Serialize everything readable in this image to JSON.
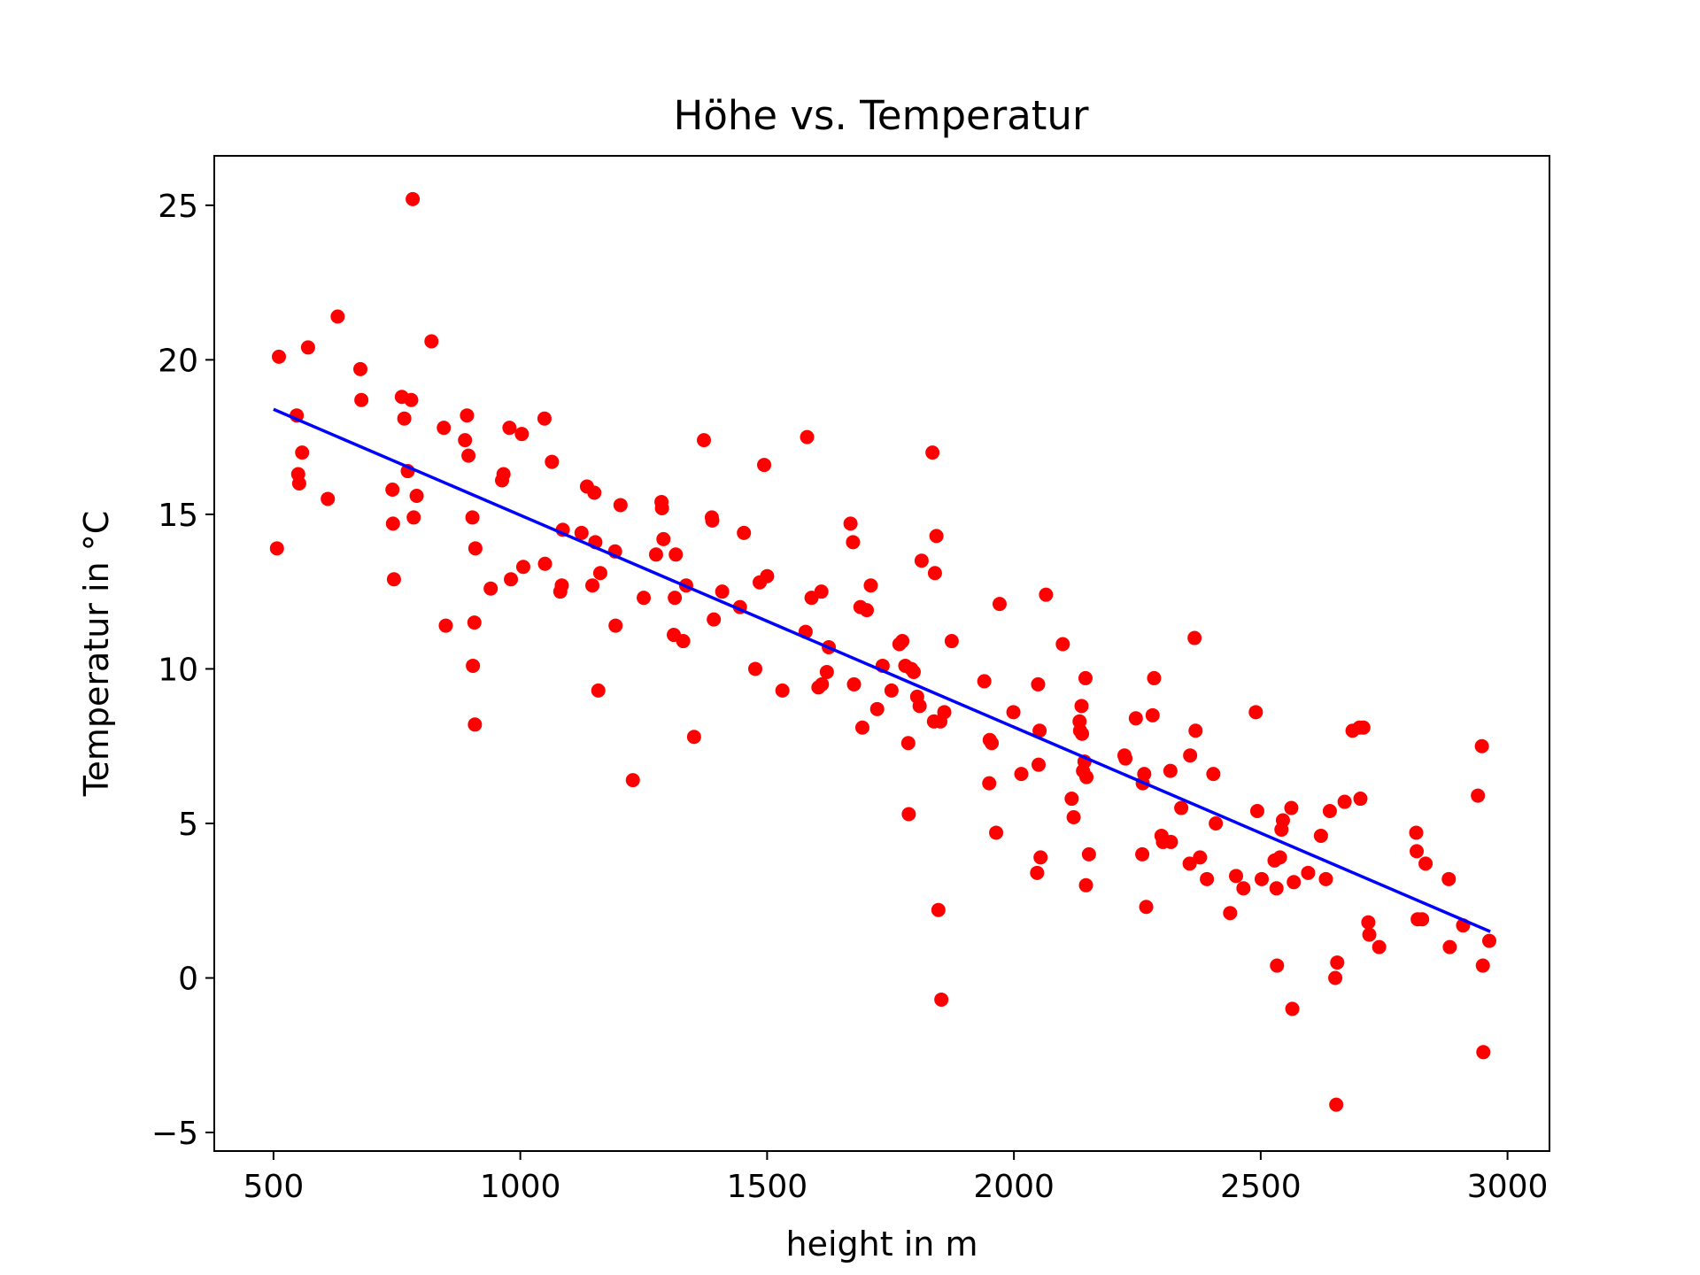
{
  "chart_data": {
    "type": "scatter",
    "title": "Höhe vs. Temperatur",
    "xlabel": "height in m",
    "ylabel": "Temperatur in °C",
    "xlim": [
      380,
      3085
    ],
    "ylim": [
      -5.6,
      26.6
    ],
    "xticks": [
      500,
      1000,
      1500,
      2000,
      2500,
      3000
    ],
    "yticks": [
      -5,
      0,
      5,
      10,
      15,
      20,
      25
    ],
    "xtick_labels": [
      "500",
      "1000",
      "1500",
      "2000",
      "2500",
      "3000"
    ],
    "ytick_labels": [
      "−5",
      "0",
      "5",
      "10",
      "15",
      "20",
      "25"
    ],
    "grid": false,
    "colors": {
      "points": "#ff0000",
      "fit_line": "#0000ff",
      "axes": "#000000"
    },
    "series": [
      {
        "kind": "scatter",
        "points": [
          [
            507,
            13.9
          ],
          [
            511,
            20.1
          ],
          [
            547,
            18.2
          ],
          [
            550,
            16.3
          ],
          [
            552,
            16.0
          ],
          [
            558,
            17.0
          ],
          [
            570,
            20.4
          ],
          [
            610,
            15.5
          ],
          [
            630,
            21.4
          ],
          [
            676,
            19.7
          ],
          [
            678,
            18.7
          ],
          [
            741,
            15.8
          ],
          [
            742,
            14.7
          ],
          [
            744,
            12.9
          ],
          [
            760,
            18.8
          ],
          [
            765,
            18.1
          ],
          [
            772,
            16.4
          ],
          [
            779,
            18.7
          ],
          [
            782,
            25.2
          ],
          [
            784,
            14.9
          ],
          [
            790,
            15.6
          ],
          [
            820,
            20.6
          ],
          [
            845,
            17.8
          ],
          [
            849,
            11.4
          ],
          [
            888,
            17.4
          ],
          [
            892,
            18.2
          ],
          [
            895,
            16.9
          ],
          [
            903,
            14.9
          ],
          [
            904,
            10.1
          ],
          [
            907,
            11.5
          ],
          [
            908,
            8.2
          ],
          [
            909,
            13.9
          ],
          [
            940,
            12.6
          ],
          [
            963,
            16.1
          ],
          [
            966,
            16.3
          ],
          [
            978,
            17.8
          ],
          [
            981,
            12.9
          ],
          [
            1003,
            17.6
          ],
          [
            1006,
            13.3
          ],
          [
            1049,
            18.1
          ],
          [
            1050,
            13.4
          ],
          [
            1064,
            16.7
          ],
          [
            1081,
            12.5
          ],
          [
            1084,
            12.7
          ],
          [
            1086,
            14.5
          ],
          [
            1124,
            14.4
          ],
          [
            1135,
            15.9
          ],
          [
            1146,
            12.7
          ],
          [
            1150,
            15.7
          ],
          [
            1152,
            14.1
          ],
          [
            1158,
            9.3
          ],
          [
            1162,
            13.1
          ],
          [
            1192,
            13.8
          ],
          [
            1193,
            11.4
          ],
          [
            1203,
            15.3
          ],
          [
            1228,
            6.4
          ],
          [
            1250,
            12.3
          ],
          [
            1275,
            13.7
          ],
          [
            1286,
            15.4
          ],
          [
            1287,
            15.2
          ],
          [
            1290,
            14.2
          ],
          [
            1311,
            11.1
          ],
          [
            1313,
            12.3
          ],
          [
            1315,
            13.7
          ],
          [
            1330,
            10.9
          ],
          [
            1336,
            12.7
          ],
          [
            1352,
            7.8
          ],
          [
            1372,
            17.4
          ],
          [
            1388,
            14.9
          ],
          [
            1389,
            14.8
          ],
          [
            1392,
            11.6
          ],
          [
            1409,
            12.5
          ],
          [
            1445,
            12.0
          ],
          [
            1453,
            14.4
          ],
          [
            1476,
            10.0
          ],
          [
            1485,
            12.8
          ],
          [
            1494,
            16.6
          ],
          [
            1500,
            13.0
          ],
          [
            1531,
            9.3
          ],
          [
            1578,
            11.2
          ],
          [
            1581,
            17.5
          ],
          [
            1590,
            12.3
          ],
          [
            1604,
            9.4
          ],
          [
            1610,
            12.5
          ],
          [
            1611,
            9.5
          ],
          [
            1621,
            9.9
          ],
          [
            1625,
            10.7
          ],
          [
            1669,
            14.7
          ],
          [
            1674,
            14.1
          ],
          [
            1676,
            9.5
          ],
          [
            1689,
            12.0
          ],
          [
            1693,
            8.1
          ],
          [
            1702,
            11.9
          ],
          [
            1710,
            12.7
          ],
          [
            1723,
            8.7
          ],
          [
            1734,
            10.1
          ],
          [
            1752,
            9.3
          ],
          [
            1768,
            10.8
          ],
          [
            1774,
            10.9
          ],
          [
            1780,
            10.1
          ],
          [
            1786,
            7.6
          ],
          [
            1787,
            5.3
          ],
          [
            1792,
            10.0
          ],
          [
            1797,
            9.9
          ],
          [
            1804,
            9.1
          ],
          [
            1809,
            8.8
          ],
          [
            1813,
            13.5
          ],
          [
            1835,
            17.0
          ],
          [
            1838,
            8.3
          ],
          [
            1840,
            13.1
          ],
          [
            1843,
            14.3
          ],
          [
            1847,
            2.2
          ],
          [
            1851,
            8.3
          ],
          [
            1853,
            -0.7
          ],
          [
            1859,
            8.6
          ],
          [
            1874,
            10.9
          ],
          [
            1940,
            9.6
          ],
          [
            1950,
            6.3
          ],
          [
            1951,
            7.7
          ],
          [
            1955,
            7.6
          ],
          [
            1964,
            4.7
          ],
          [
            1971,
            12.1
          ],
          [
            1999,
            8.6
          ],
          [
            2015,
            6.6
          ],
          [
            2047,
            3.4
          ],
          [
            2049,
            9.5
          ],
          [
            2050,
            6.9
          ],
          [
            2052,
            8.0
          ],
          [
            2054,
            3.9
          ],
          [
            2065,
            12.4
          ],
          [
            2099,
            10.8
          ],
          [
            2117,
            5.8
          ],
          [
            2121,
            5.2
          ],
          [
            2133,
            8.3
          ],
          [
            2134,
            8.0
          ],
          [
            2137,
            8.8
          ],
          [
            2138,
            7.9
          ],
          [
            2140,
            6.7
          ],
          [
            2143,
            7.0
          ],
          [
            2145,
            9.7
          ],
          [
            2146,
            3.0
          ],
          [
            2147,
            6.5
          ],
          [
            2152,
            4.0
          ],
          [
            2224,
            7.2
          ],
          [
            2226,
            7.1
          ],
          [
            2247,
            8.4
          ],
          [
            2260,
            4.0
          ],
          [
            2261,
            6.3
          ],
          [
            2264,
            6.6
          ],
          [
            2268,
            2.3
          ],
          [
            2281,
            8.5
          ],
          [
            2284,
            9.7
          ],
          [
            2299,
            4.6
          ],
          [
            2302,
            4.4
          ],
          [
            2317,
            6.7
          ],
          [
            2318,
            4.4
          ],
          [
            2339,
            5.5
          ],
          [
            2356,
            3.7
          ],
          [
            2357,
            7.2
          ],
          [
            2366,
            11.0
          ],
          [
            2368,
            8.0
          ],
          [
            2377,
            3.9
          ],
          [
            2391,
            3.2
          ],
          [
            2404,
            6.6
          ],
          [
            2409,
            5.0
          ],
          [
            2438,
            2.1
          ],
          [
            2450,
            3.3
          ],
          [
            2465,
            2.9
          ],
          [
            2490,
            8.6
          ],
          [
            2493,
            5.4
          ],
          [
            2502,
            3.2
          ],
          [
            2528,
            3.8
          ],
          [
            2532,
            2.9
          ],
          [
            2533,
            0.4
          ],
          [
            2539,
            3.9
          ],
          [
            2542,
            4.8
          ],
          [
            2545,
            5.1
          ],
          [
            2562,
            5.5
          ],
          [
            2564,
            -1.0
          ],
          [
            2567,
            3.1
          ],
          [
            2596,
            3.4
          ],
          [
            2622,
            4.6
          ],
          [
            2632,
            3.2
          ],
          [
            2640,
            5.4
          ],
          [
            2651,
            0.0
          ],
          [
            2653,
            -4.1
          ],
          [
            2655,
            0.5
          ],
          [
            2670,
            5.7
          ],
          [
            2686,
            8.0
          ],
          [
            2700,
            8.1
          ],
          [
            2702,
            5.8
          ],
          [
            2708,
            8.1
          ],
          [
            2718,
            1.8
          ],
          [
            2720,
            1.4
          ],
          [
            2740,
            1.0
          ],
          [
            2815,
            4.7
          ],
          [
            2816,
            4.1
          ],
          [
            2818,
            1.9
          ],
          [
            2827,
            1.9
          ],
          [
            2834,
            3.7
          ],
          [
            2881,
            3.2
          ],
          [
            2883,
            1.0
          ],
          [
            2910,
            1.7
          ],
          [
            2940,
            5.9
          ],
          [
            2948,
            7.5
          ],
          [
            2950,
            0.4
          ],
          [
            2951,
            -2.4
          ],
          [
            2963,
            1.2
          ]
        ]
      },
      {
        "kind": "line",
        "points": [
          [
            500,
            18.4
          ],
          [
            2965,
            1.5
          ]
        ]
      }
    ]
  }
}
